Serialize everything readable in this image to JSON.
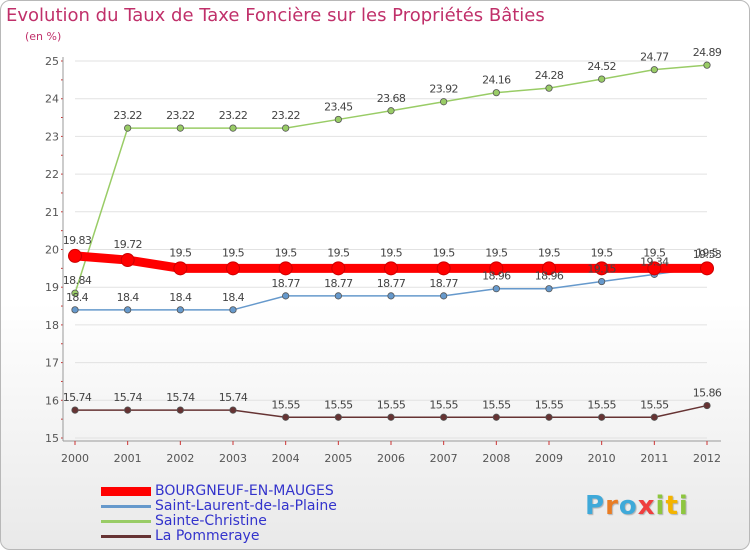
{
  "title": "Evolution du Taux de Taxe Foncière sur les Propriétés Bâties",
  "unit": "(en %)",
  "logo": {
    "text": "Proxiti",
    "letters": [
      {
        "ch": "P",
        "color": "#3fa9d9"
      },
      {
        "ch": "r",
        "color": "#e97d24"
      },
      {
        "ch": "o",
        "color": "#3fa9d9"
      },
      {
        "ch": "x",
        "color": "#ef3e3e"
      },
      {
        "ch": "i",
        "color": "#8dc63f"
      },
      {
        "ch": "t",
        "color": "#f4b400"
      },
      {
        "ch": "i",
        "color": "#8dc63f"
      }
    ]
  },
  "chart_data": {
    "type": "line",
    "title": "Evolution du Taux de Taxe Foncière sur les Propriétés Bâties",
    "ylabel": "(en %)",
    "xlabel": "",
    "ylim": [
      15,
      25
    ],
    "yticks": [
      "15",
      "16",
      "17",
      "18",
      "19",
      "20",
      "21",
      "22",
      "23",
      "24",
      "25"
    ],
    "categories": [
      "2000",
      "2001",
      "2002",
      "2003",
      "2004",
      "2005",
      "2006",
      "2007",
      "2008",
      "2009",
      "2010",
      "2011",
      "2012"
    ],
    "grid": "horizontal",
    "legend_position": "bottom-left",
    "series": [
      {
        "name": "BOURGNEUF-EN-MAUGES",
        "color": "#ff0000",
        "values": [
          19.83,
          19.72,
          19.5,
          19.5,
          19.5,
          19.5,
          19.5,
          19.5,
          19.5,
          19.5,
          19.5,
          19.5,
          19.5
        ],
        "labels": [
          "19.83",
          "19.72",
          "19.5",
          "19.5",
          "19.5",
          "19.5",
          "19.5",
          "19.5",
          "19.5",
          "19.5",
          "19.5",
          "19.5",
          "19.5"
        ]
      },
      {
        "name": "Saint-Laurent-de-la-Plaine",
        "color": "#6699cc",
        "values": [
          18.4,
          18.4,
          18.4,
          18.4,
          18.77,
          18.77,
          18.77,
          18.77,
          18.96,
          18.96,
          19.15,
          19.34,
          19.53
        ],
        "labels": [
          "18.4",
          "18.4",
          "18.4",
          "18.4",
          "18.77",
          "18.77",
          "18.77",
          "18.77",
          "18.96",
          "18.96",
          "19.15",
          "19.34",
          "19.53"
        ]
      },
      {
        "name": "Sainte-Christine",
        "color": "#99cc66",
        "values": [
          18.84,
          23.22,
          23.22,
          23.22,
          23.22,
          23.45,
          23.68,
          23.92,
          24.16,
          24.28,
          24.52,
          24.77,
          24.89
        ],
        "labels": [
          "18.84",
          "23.22",
          "23.22",
          "23.22",
          "23.22",
          "23.45",
          "23.68",
          "23.92",
          "24.16",
          "24.28",
          "24.52",
          "24.77",
          "24.89"
        ]
      },
      {
        "name": "La Pommeraye",
        "color": "#663333",
        "values": [
          15.74,
          15.74,
          15.74,
          15.74,
          15.55,
          15.55,
          15.55,
          15.55,
          15.55,
          15.55,
          15.55,
          15.55,
          15.86
        ],
        "labels": [
          "15.74",
          "15.74",
          "15.74",
          "15.74",
          "15.55",
          "15.55",
          "15.55",
          "15.55",
          "15.55",
          "15.55",
          "15.55",
          "15.55",
          "15.86"
        ]
      }
    ]
  }
}
